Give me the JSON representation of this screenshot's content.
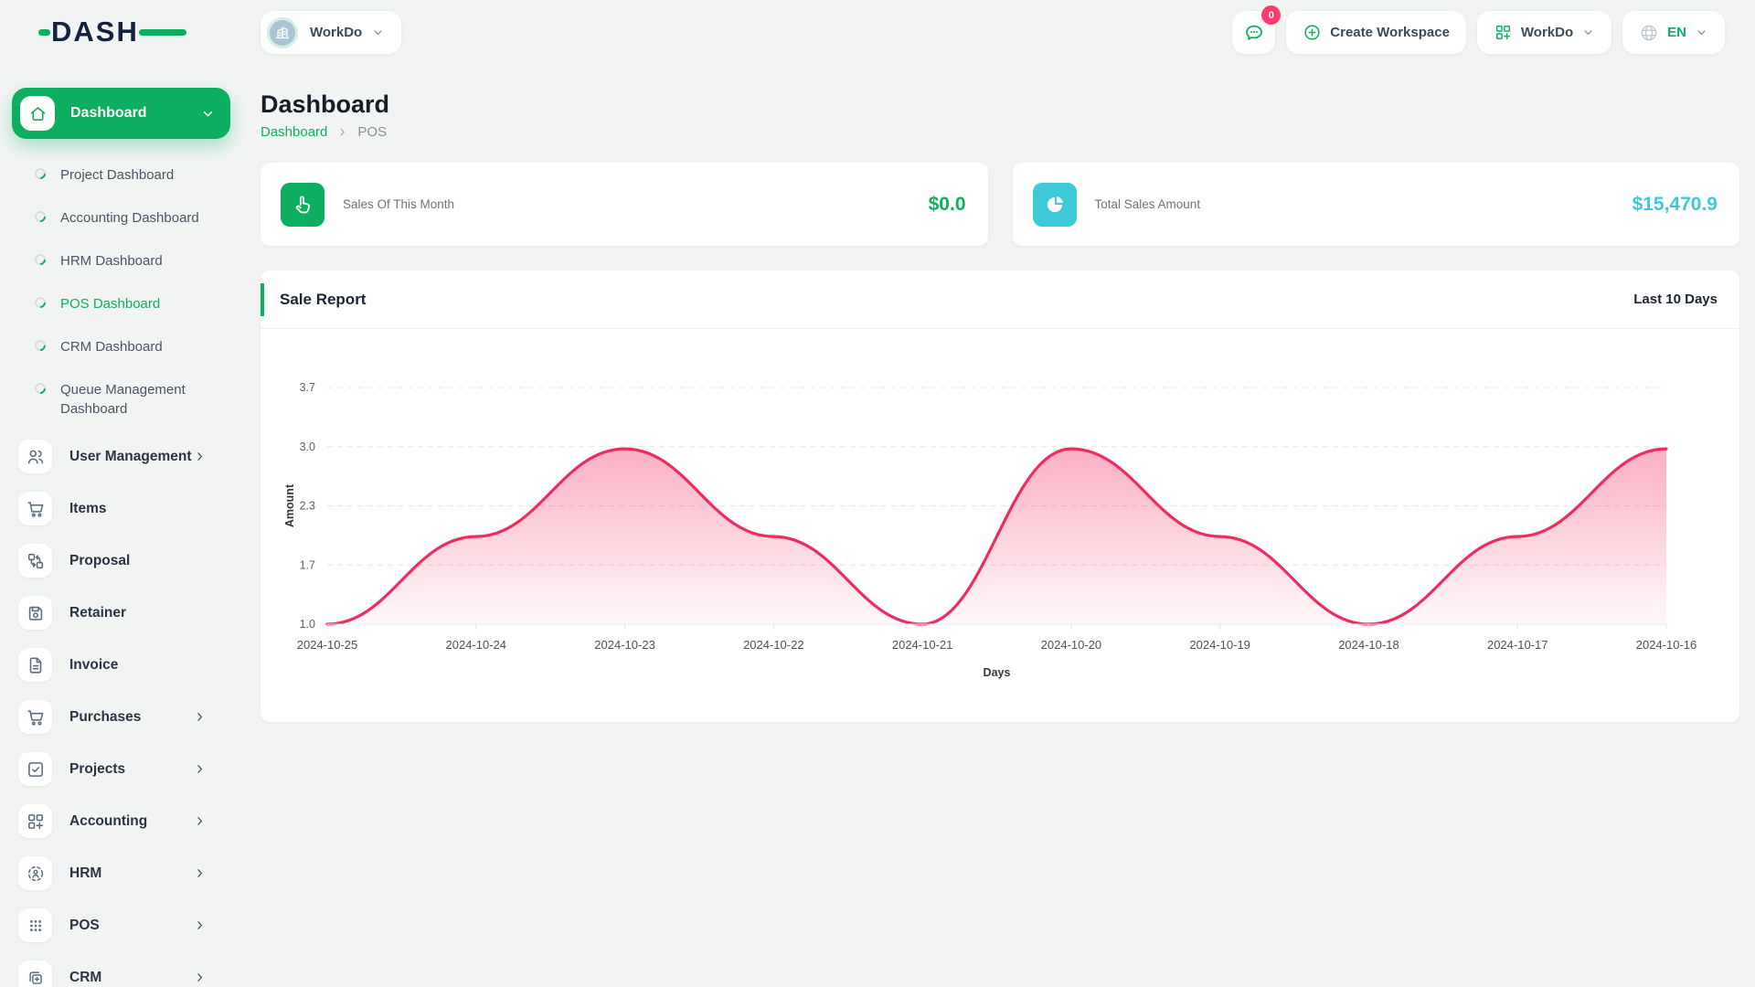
{
  "brand": {
    "name": "DASH"
  },
  "topbar": {
    "workspace_selector": {
      "label": "WorkDo",
      "avatar_icon": "building-icon"
    },
    "messages_badge": "0",
    "create_workspace_label": "Create Workspace",
    "workdo_menu_label": "WorkDo",
    "language": "EN"
  },
  "sidebar": {
    "active_group": {
      "label": "Dashboard",
      "icon": "home-icon"
    },
    "dashboard_children": [
      {
        "label": "Project Dashboard",
        "active": false
      },
      {
        "label": "Accounting Dashboard",
        "active": false
      },
      {
        "label": "HRM Dashboard",
        "active": false
      },
      {
        "label": "POS Dashboard",
        "active": true
      },
      {
        "label": "CRM Dashboard",
        "active": false
      },
      {
        "label": "Queue Management Dashboard",
        "active": false
      }
    ],
    "items": [
      {
        "label": "User Management",
        "icon": "users-icon",
        "expandable": true
      },
      {
        "label": "Items",
        "icon": "cart-icon",
        "expandable": false
      },
      {
        "label": "Proposal",
        "icon": "workflow-icon",
        "expandable": false
      },
      {
        "label": "Retainer",
        "icon": "save-icon",
        "expandable": false
      },
      {
        "label": "Invoice",
        "icon": "document-icon",
        "expandable": false
      },
      {
        "label": "Purchases",
        "icon": "cart-icon",
        "expandable": true
      },
      {
        "label": "Projects",
        "icon": "check-square-icon",
        "expandable": true
      },
      {
        "label": "Accounting",
        "icon": "grid-plus-icon",
        "expandable": true
      },
      {
        "label": "HRM",
        "icon": "hrm-icon",
        "expandable": true
      },
      {
        "label": "POS",
        "icon": "dots-grid-icon",
        "expandable": true
      },
      {
        "label": "CRM",
        "icon": "copy-icon",
        "expandable": true
      }
    ]
  },
  "page": {
    "title": "Dashboard",
    "breadcrumb": [
      {
        "label": "Dashboard",
        "link": true
      },
      {
        "label": "POS",
        "link": false
      }
    ]
  },
  "stat_cards": [
    {
      "label": "Sales Of This Month",
      "value": "$0.0",
      "icon": "tap-icon",
      "accent": "#0caf60"
    },
    {
      "label": "Total Sales Amount",
      "value": "$15,470.9",
      "icon": "pie-chart-icon",
      "accent": "#3ec9d8"
    }
  ],
  "chart_card": {
    "title": "Sale Report",
    "range_label": "Last 10 Days"
  },
  "chart_data": {
    "type": "area",
    "title": "Sale Report",
    "categories": [
      "2024-10-25",
      "2024-10-24",
      "2024-10-23",
      "2024-10-22",
      "2024-10-21",
      "2024-10-20",
      "2024-10-19",
      "2024-10-18",
      "2024-10-17",
      "2024-10-16"
    ],
    "series": [
      {
        "name": "Amount",
        "values": [
          1.0,
          2.0,
          3.0,
          2.0,
          1.0,
          3.0,
          2.0,
          1.0,
          2.0,
          3.0
        ]
      }
    ],
    "xlabel": "Days",
    "ylabel": "Amount",
    "ylim": [
      1.0,
      3.7
    ],
    "ytick_labels": [
      "1.0",
      "1.7",
      "2.3",
      "3.0",
      "3.7"
    ],
    "grid": "horizontal-dashed",
    "legend": "none",
    "curve": "smooth",
    "line_color": "#ee2d5e",
    "fill": "vertical gradient of line color fading to white"
  },
  "colors": {
    "brand_green": "#0caf60",
    "teal": "#3ec9d8",
    "badge_pink": "#ff3a6e",
    "chart_line": "#ee2d5e",
    "page_bg": "#f1f4f3"
  }
}
